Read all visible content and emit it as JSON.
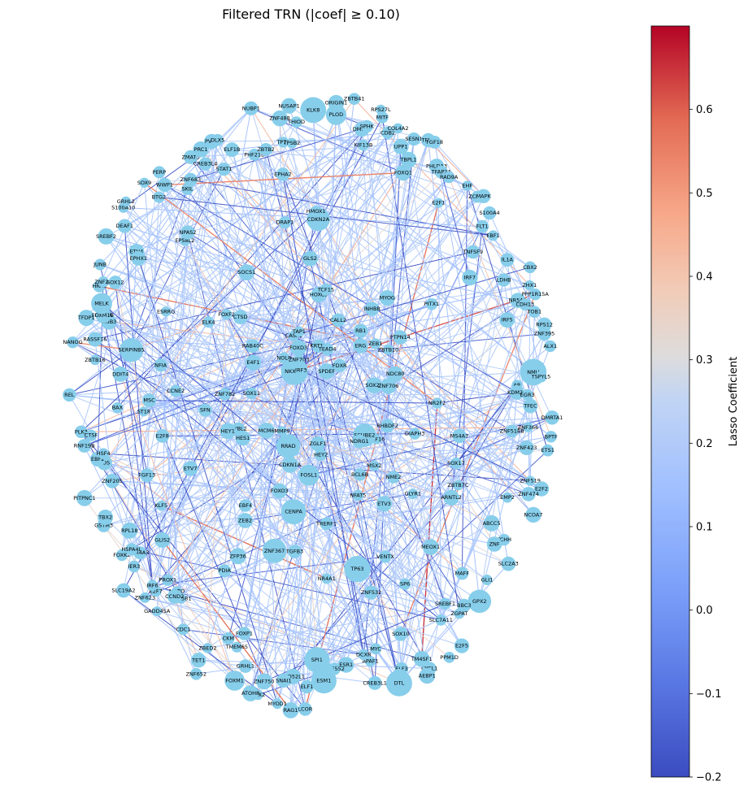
{
  "title": "Filtered TRN (|coef| ≥ 0.10)",
  "colorbar": {
    "label": "Lasso Coefficient",
    "min": -0.2,
    "max": 0.7,
    "ticks": [
      "0.6",
      "0.5",
      "0.4",
      "0.3",
      "0.2",
      "0.1",
      "0.0",
      "−0.1",
      "−0.2"
    ],
    "tick_values": [
      0.6,
      0.5,
      0.4,
      0.3,
      0.2,
      0.1,
      0.0,
      -0.1,
      -0.2
    ],
    "colormap": "coolwarm",
    "low_color": "#3b4cc0",
    "mid_color": "#dddddd",
    "high_color": "#b40426"
  },
  "node_color": "#87ceeb",
  "nodes": [
    "KLK8",
    "CDKN2A",
    "HMOX1",
    "HOXC5",
    "PLOD",
    "ORIGIN1",
    "KRT17",
    "TCF15",
    "ZBTB41",
    "DMRT1",
    "KIF13B",
    "SPHK",
    "MITF",
    "RPS27L",
    "CDB2",
    "TEAD4",
    "COL4A2",
    "CALL2",
    "UPP1",
    "FOXQ1",
    "SESN1",
    "TBPL1",
    "TFEB",
    "FGF18",
    "SPDEF",
    "PHLDA3",
    "TFAP2A",
    "RAD9A",
    "E2F1",
    "INHBB",
    "RB1",
    "MYOG",
    "EHF",
    "ZCHL5",
    "FDXR",
    "MAPK",
    "ERG",
    "FLT1",
    "S100A4",
    "TNFSF9",
    "ZEB1",
    "EBF1",
    "PITX1",
    "IRF7",
    "IL1A",
    "PTPN14",
    "ZBTB10",
    "LDHB",
    "CBX2",
    "ZHX1",
    "NR5A2",
    "PPP1R15A",
    "CDH13",
    "IRF5",
    "TOB1",
    "NDC80",
    "RPS12",
    "ZNF395",
    "SOX21",
    "ALX1",
    "ZNF706",
    "NMU",
    "TSPYL5",
    "AR",
    "KDM2A",
    "EGR3",
    "NR2F2",
    "TFEC",
    "DMRTA1",
    "ZNF366",
    "ZNF518B",
    "BPTF",
    "ZNF423",
    "ETS1",
    "MS4A7",
    "DIAPH3",
    "RHBDF2",
    "ZNF519",
    "E2F2",
    "ZNF474",
    "SOX17",
    "NCOA7",
    "EMP2",
    "KLF16",
    "ZBTB7C",
    "SCUBE2",
    "ARNTL2",
    "ABCC5",
    "TCHH",
    "ZNF",
    "NDRG1",
    "SLC2A3",
    "GLYR1",
    "NME2",
    "MSX2",
    "GLI1",
    "MAFF",
    "MEOX1",
    "GPX2",
    "BBC3",
    "ETV3",
    "ZGPAT",
    "BCL6B",
    "SREBF1",
    "SLC7A11",
    "E2F5",
    "PPM1D",
    "SP6",
    "VENTX",
    "NFAT5",
    "CYCL1",
    "TM4SF1",
    "AEBP1",
    "SOX10",
    "ELF3",
    "ZNF532",
    "RPL36",
    "DTL",
    "TP63",
    "MYC",
    "CREB3L1",
    "APAF1",
    "DCXR",
    "HEY2",
    "ZGLF1",
    "TRERF1",
    "ESR1",
    "NR4A1",
    "ZNF552",
    "TNNI1",
    "ESM1",
    "SPI1",
    "ELF1",
    "FOSL1",
    "LCOR",
    "RAG1",
    "TPD52L1",
    "SNAI1",
    "TGFB3",
    "MYOD1",
    "CENPA",
    "ZNF750",
    "CUX2",
    "ATOH8",
    "GRHL1",
    "ZNF367",
    "FOXP1",
    "FOXM1",
    "TMEM65",
    "CKM",
    "CDKN1A",
    "FOXO3",
    "ZNF652",
    "ZBED2",
    "TET1",
    "ZFP36",
    "PDIA",
    "RRAD",
    "CDC1",
    "ZEB2",
    "EBF4",
    "ZNF581",
    "NOTO",
    "CCND2",
    "GADD45A",
    "PROX1",
    "ZNF623",
    "E2F7",
    "IRF6",
    "SLC19A2",
    "MMP9",
    "IER3",
    "GLIS2",
    "NR4A3",
    "FOXK2",
    "HSPA4L",
    "RPL18",
    "KLF5",
    "MCM6",
    "GSTM3",
    "TBX2",
    "ETV7",
    "HES1",
    "FGF13",
    "PITPNC1",
    "MYBL2",
    "ZNF205",
    "HEY1",
    "FOS",
    "EBF2",
    "HSF4",
    "E2F8",
    "RNF19B",
    "PLK3",
    "CTSF",
    "ST18",
    "SFN",
    "BAX",
    "REL",
    "MSC",
    "ZNF782",
    "CCNE2",
    "SOX11",
    "DDIT4",
    "ZBTB16",
    "NFIA",
    "NANOG",
    "RASSF16",
    "SERPINB5",
    "TFDP1",
    "TRIB3",
    "PDGFA",
    "FOXM1B",
    "MELK",
    "HRAS",
    "ZNF26",
    "ESRRG",
    "SOX12",
    "JUNB",
    "E4F1",
    "ELK4",
    "SREBF2",
    "ETV4",
    "EPHX1",
    "DEAF1",
    "RAB40C",
    "S100A10",
    "FOXF2",
    "GRHL2",
    "CTSD",
    "EPS8L2",
    "SOX9",
    "NPAS2",
    "BTG2",
    "WWP1",
    "PERP",
    "NOL8",
    "SKIL",
    "NKX3-2",
    "ZNF683",
    "SOCS1",
    "ZMAT3",
    "CREB3L4",
    "PRC1",
    "PVT1",
    "DLX5",
    "STAT1",
    "ELF1B",
    "IRF3",
    "ZNF703",
    "CASP1",
    "FOXD3",
    "PHF21B",
    "NUBP1",
    "ZBTB2",
    "TAP1",
    "DRAP1",
    "EPHA2",
    "ZNF488",
    "TP73",
    "NUSAP1",
    "TPSB2",
    "THIOD",
    "GLS2"
  ]
}
